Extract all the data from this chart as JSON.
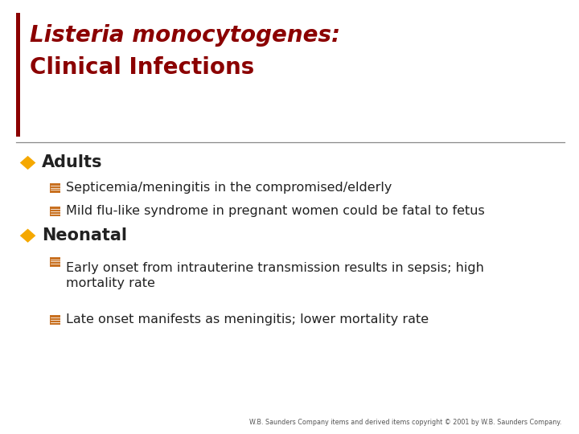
{
  "title_line1": "Listeria monocytogenes:",
  "title_line2": "Clinical Infections",
  "title_color": "#8B0000",
  "bg_color": "#FFFFFF",
  "left_bar_color": "#8B0000",
  "diamond_color": "#F5A800",
  "bullet_color": "#C87020",
  "bullet_text_color": "#222222",
  "section1_header": "Adults",
  "section1_items": [
    "Septicemia/meningitis in the compromised/elderly",
    "Mild flu-like syndrome in pregnant women could be fatal to fetus"
  ],
  "section2_header": "Neonatal",
  "section2_items": [
    "Early onset from intrauterine transmission results in sepsis; high\nmortality rate",
    "Late onset manifests as meningitis; lower mortality rate"
  ],
  "footer": "W.B. Saunders Company items and derived items copyright © 2001 by W.B. Saunders Company.",
  "title_fontsize": 20,
  "section_fontsize": 15,
  "item_fontsize": 11.5
}
